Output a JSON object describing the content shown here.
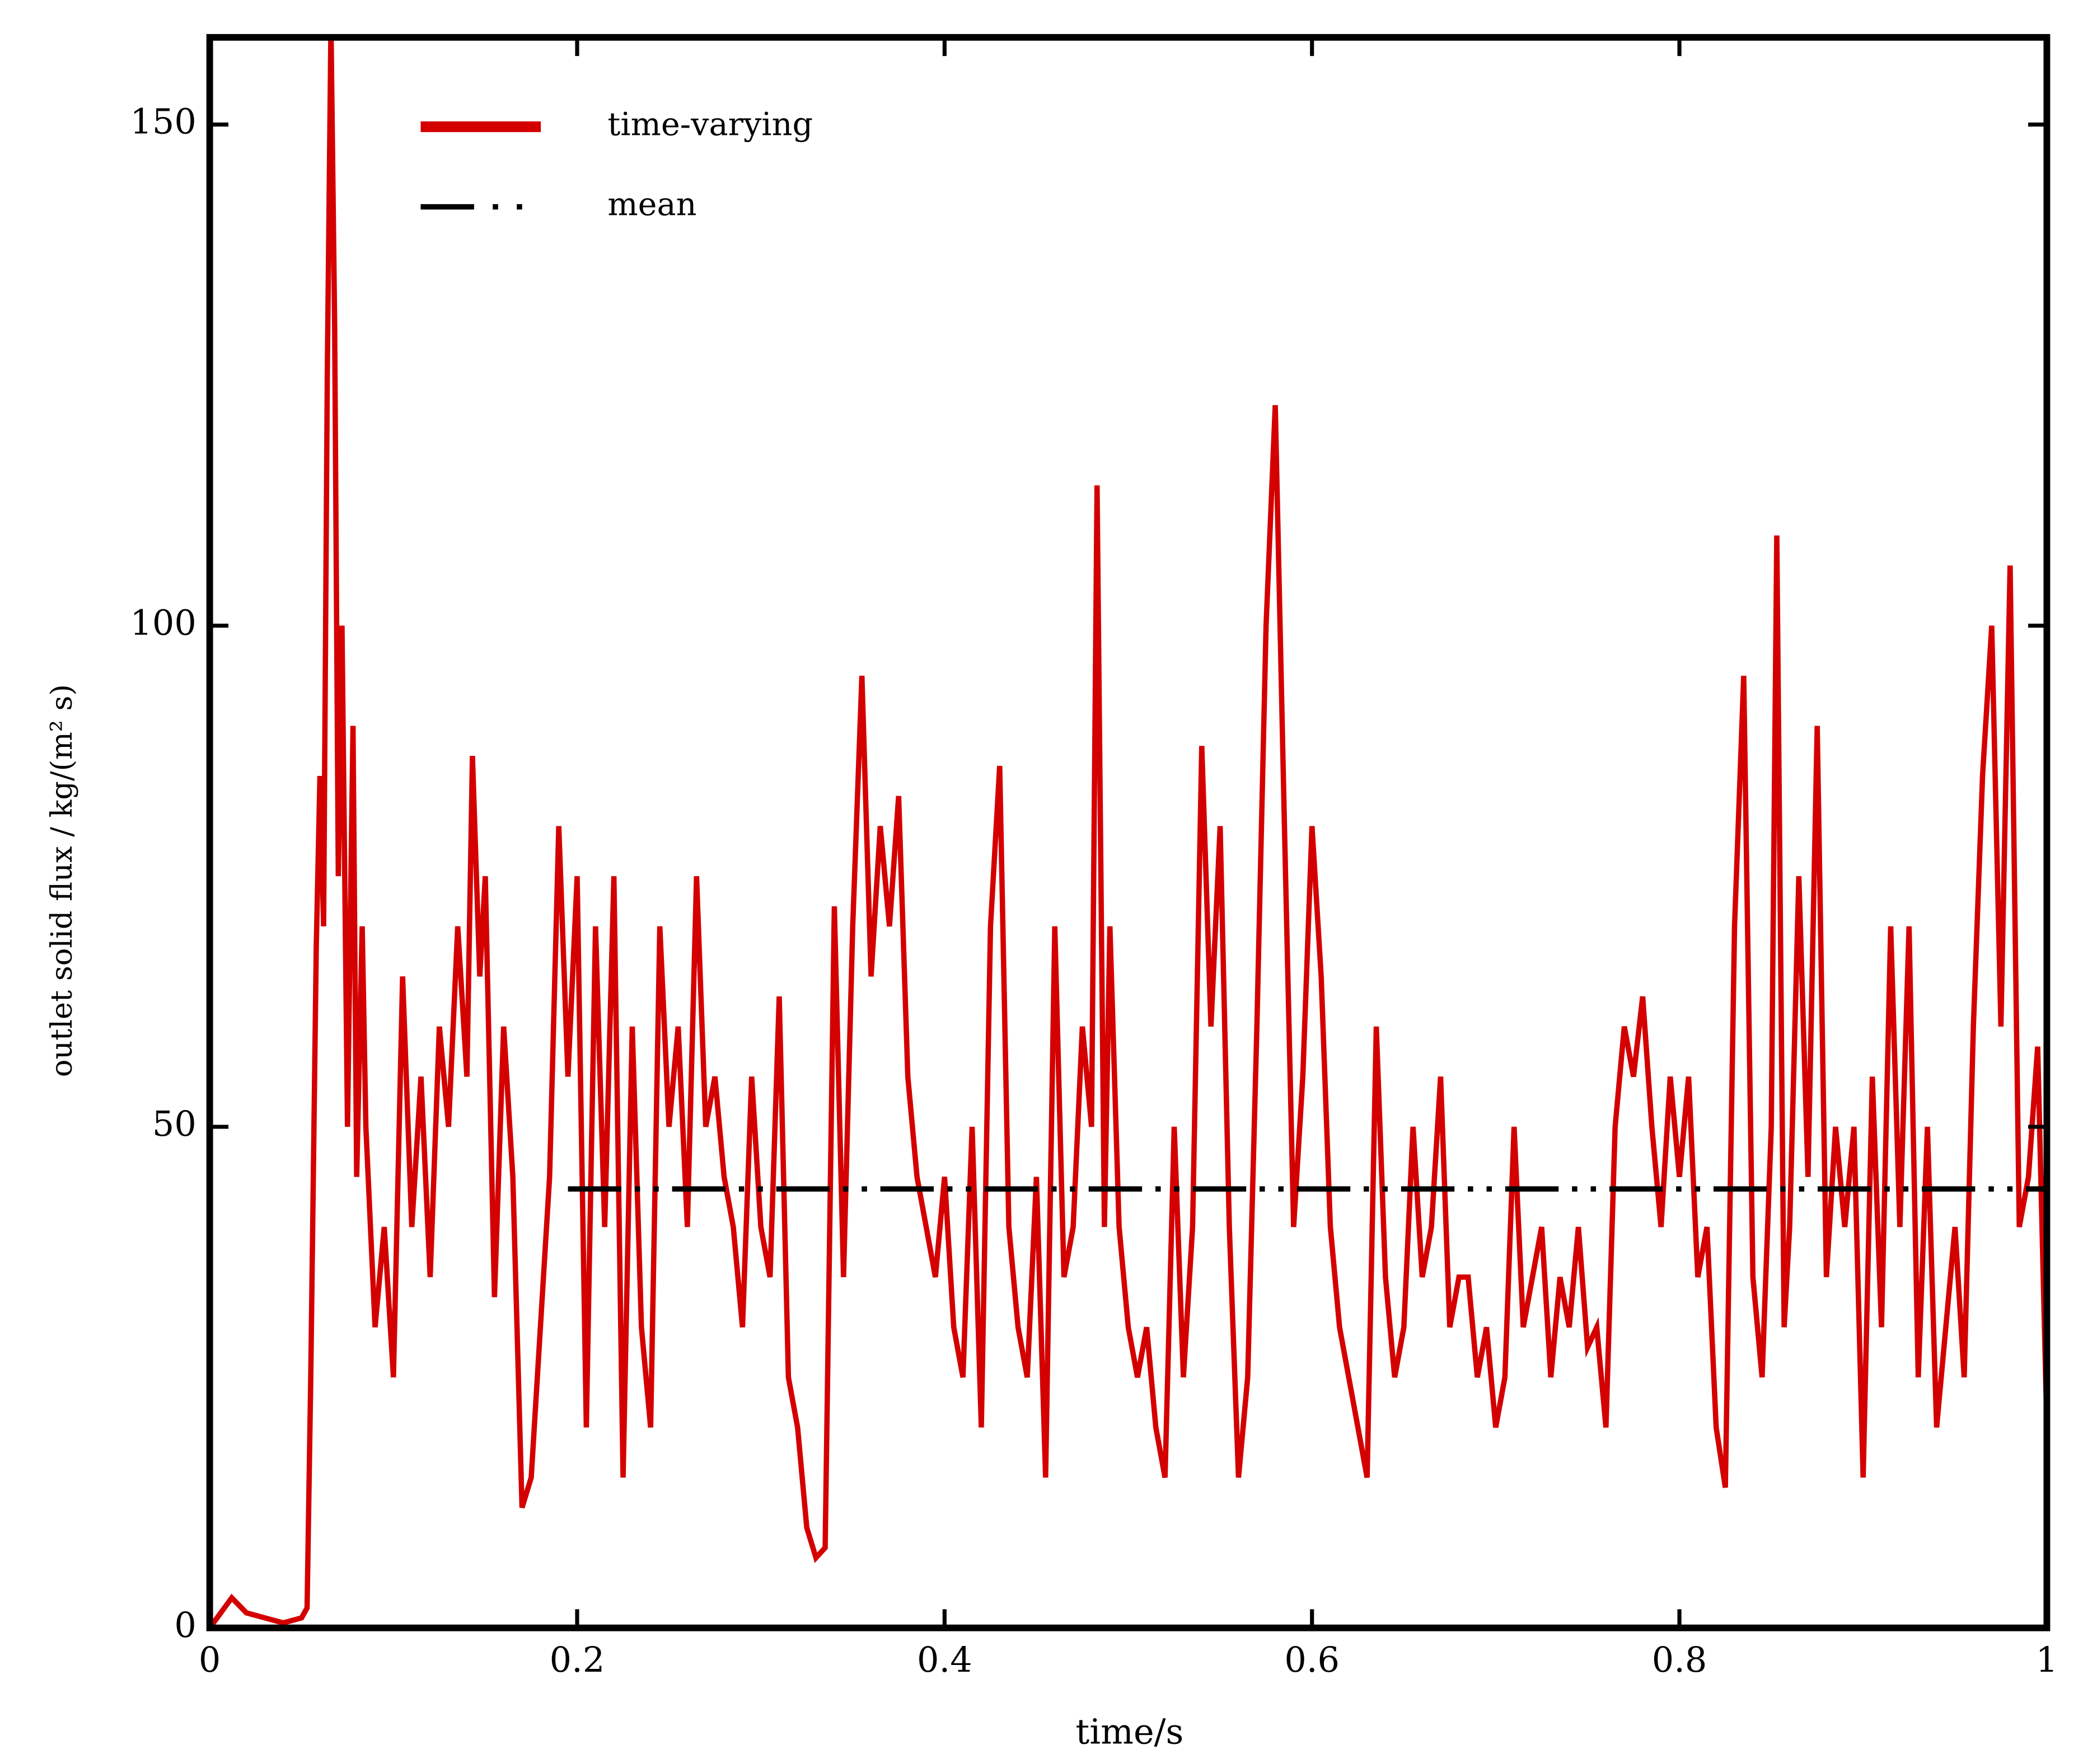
{
  "chart_data": {
    "type": "line",
    "xlabel": "time/s",
    "ylabel": "outlet solid flux / kg/(m² s)",
    "xlim": [
      0,
      1
    ],
    "ylim": [
      0,
      158.7
    ],
    "xticks": [
      0,
      0.2,
      0.4,
      0.6,
      0.8,
      1
    ],
    "yticks": [
      0,
      50,
      100,
      150
    ],
    "legend": "upper left",
    "series": [
      {
        "name": "time-varying",
        "color": "#d40000",
        "style": "solid",
        "x": [
          0,
          0.008,
          0.012,
          0.02,
          0.03,
          0.04,
          0.05,
          0.053,
          0.055,
          0.058,
          0.06,
          0.062,
          0.064,
          0.066,
          0.068,
          0.07,
          0.072,
          0.075,
          0.078,
          0.08,
          0.083,
          0.085,
          0.09,
          0.095,
          0.1,
          0.105,
          0.11,
          0.115,
          0.12,
          0.125,
          0.13,
          0.135,
          0.14,
          0.143,
          0.147,
          0.15,
          0.155,
          0.16,
          0.165,
          0.17,
          0.175,
          0.18,
          0.185,
          0.19,
          0.195,
          0.2,
          0.205,
          0.21,
          0.215,
          0.22,
          0.225,
          0.23,
          0.235,
          0.24,
          0.245,
          0.25,
          0.255,
          0.26,
          0.265,
          0.27,
          0.275,
          0.28,
          0.285,
          0.29,
          0.295,
          0.3,
          0.305,
          0.31,
          0.315,
          0.32,
          0.325,
          0.33,
          0.335,
          0.34,
          0.345,
          0.35,
          0.355,
          0.36,
          0.365,
          0.37,
          0.375,
          0.38,
          0.385,
          0.39,
          0.395,
          0.4,
          0.405,
          0.41,
          0.415,
          0.42,
          0.425,
          0.43,
          0.435,
          0.44,
          0.445,
          0.45,
          0.455,
          0.46,
          0.465,
          0.47,
          0.475,
          0.48,
          0.483,
          0.487,
          0.49,
          0.495,
          0.5,
          0.505,
          0.51,
          0.515,
          0.52,
          0.525,
          0.53,
          0.535,
          0.54,
          0.545,
          0.55,
          0.555,
          0.56,
          0.565,
          0.57,
          0.575,
          0.58,
          0.585,
          0.59,
          0.595,
          0.6,
          0.605,
          0.61,
          0.615,
          0.62,
          0.625,
          0.63,
          0.635,
          0.64,
          0.645,
          0.65,
          0.655,
          0.66,
          0.665,
          0.67,
          0.675,
          0.68,
          0.685,
          0.69,
          0.695,
          0.7,
          0.705,
          0.71,
          0.715,
          0.72,
          0.725,
          0.73,
          0.735,
          0.74,
          0.745,
          0.75,
          0.755,
          0.76,
          0.765,
          0.77,
          0.775,
          0.78,
          0.785,
          0.79,
          0.795,
          0.8,
          0.805,
          0.81,
          0.815,
          0.82,
          0.825,
          0.83,
          0.835,
          0.84,
          0.845,
          0.85,
          0.853,
          0.857,
          0.86,
          0.865,
          0.87,
          0.875,
          0.88,
          0.885,
          0.89,
          0.895,
          0.9,
          0.905,
          0.91,
          0.915,
          0.92,
          0.925,
          0.93,
          0.935,
          0.94,
          0.945,
          0.95,
          0.955,
          0.96,
          0.965,
          0.97,
          0.975,
          0.98,
          0.985,
          0.99,
          0.995,
          1
        ],
        "values": [
          0,
          2,
          3,
          1.5,
          1,
          0.5,
          1,
          2,
          25,
          68,
          85,
          70,
          125,
          160,
          130,
          75,
          100,
          50,
          90,
          45,
          70,
          50,
          30,
          40,
          25,
          65,
          40,
          55,
          35,
          60,
          50,
          70,
          55,
          87,
          65,
          75,
          33,
          60,
          45,
          12,
          15,
          30,
          45,
          80,
          55,
          75,
          20,
          70,
          40,
          75,
          15,
          60,
          30,
          20,
          70,
          50,
          60,
          40,
          75,
          50,
          55,
          45,
          40,
          30,
          55,
          40,
          35,
          63,
          25,
          20,
          10,
          7,
          8,
          72,
          35,
          70,
          95,
          65,
          80,
          70,
          83,
          55,
          45,
          40,
          35,
          45,
          30,
          25,
          50,
          20,
          70,
          86,
          40,
          30,
          25,
          45,
          15,
          70,
          35,
          40,
          60,
          50,
          114,
          40,
          70,
          40,
          30,
          25,
          30,
          20,
          15,
          50,
          25,
          40,
          88,
          60,
          80,
          40,
          15,
          25,
          60,
          100,
          122,
          80,
          40,
          55,
          80,
          65,
          40,
          30,
          25,
          20,
          15,
          60,
          35,
          25,
          30,
          50,
          35,
          40,
          55,
          30,
          35,
          35,
          25,
          30,
          20,
          25,
          50,
          30,
          35,
          40,
          25,
          35,
          30,
          40,
          28,
          30,
          20,
          50,
          60,
          55,
          63,
          50,
          40,
          55,
          45,
          55,
          35,
          40,
          20,
          14,
          70,
          95,
          35,
          25,
          50,
          109,
          30,
          40,
          75,
          45,
          90,
          35,
          50,
          40,
          50,
          15,
          55,
          30,
          70,
          40,
          70,
          25,
          50,
          20,
          30,
          40,
          25,
          60,
          85,
          100,
          60,
          106,
          40,
          45,
          58,
          20
        ]
      },
      {
        "name": "mean",
        "color": "#000000",
        "style": "dashdot",
        "x": [
          0.195,
          1
        ],
        "values": [
          43.8,
          43.8
        ]
      }
    ]
  }
}
